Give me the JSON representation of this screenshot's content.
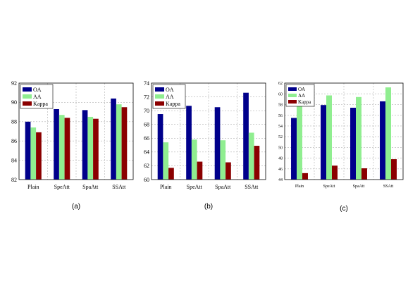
{
  "chart_data": [
    {
      "type": "bar",
      "caption": "(a)",
      "categories": [
        "Plain",
        "SpeAtt",
        "SpaAtt",
        "SSAtt"
      ],
      "series": [
        {
          "name": "OA",
          "color": "#00008b",
          "values": [
            88.0,
            89.3,
            89.2,
            90.4
          ]
        },
        {
          "name": "AA",
          "color": "#90ee90",
          "values": [
            87.4,
            88.7,
            88.5,
            89.8
          ]
        },
        {
          "name": "Kappa",
          "color": "#8b0000",
          "values": [
            86.9,
            88.4,
            88.3,
            89.5
          ]
        }
      ],
      "ylim": [
        82,
        92
      ],
      "yticks": [
        82,
        84,
        86,
        88,
        90,
        92
      ],
      "grid": true,
      "legend": "top-left"
    },
    {
      "type": "bar",
      "caption": "(b)",
      "categories": [
        "Plain",
        "SpeAtt",
        "SpaAtt",
        "SSAtt"
      ],
      "series": [
        {
          "name": "OA",
          "color": "#00008b",
          "values": [
            69.5,
            70.7,
            70.5,
            72.6
          ]
        },
        {
          "name": "AA",
          "color": "#90ee90",
          "values": [
            65.4,
            65.8,
            65.7,
            66.8
          ]
        },
        {
          "name": "Kappa",
          "color": "#8b0000",
          "values": [
            61.7,
            62.6,
            62.5,
            64.9
          ]
        }
      ],
      "ylim": [
        60,
        74
      ],
      "yticks": [
        60,
        62,
        64,
        66,
        68,
        70,
        72,
        74
      ],
      "grid": true,
      "legend": "top-left"
    },
    {
      "type": "bar",
      "caption": "(c)",
      "categories": [
        "Plain",
        "SpeAtt",
        "SpaAtt",
        "SSAtt"
      ],
      "series": [
        {
          "name": "OA",
          "color": "#00008b",
          "values": [
            55.5,
            57.9,
            57.4,
            58.6
          ]
        },
        {
          "name": "AA",
          "color": "#90ee90",
          "values": [
            58.0,
            59.7,
            59.4,
            61.2
          ]
        },
        {
          "name": "Kappa",
          "color": "#8b0000",
          "values": [
            45.2,
            46.6,
            46.1,
            47.8
          ]
        }
      ],
      "ylim": [
        44,
        62
      ],
      "yticks": [
        44,
        46,
        48,
        50,
        52,
        54,
        56,
        58,
        60,
        62
      ],
      "grid": true,
      "legend": "top-left"
    }
  ]
}
